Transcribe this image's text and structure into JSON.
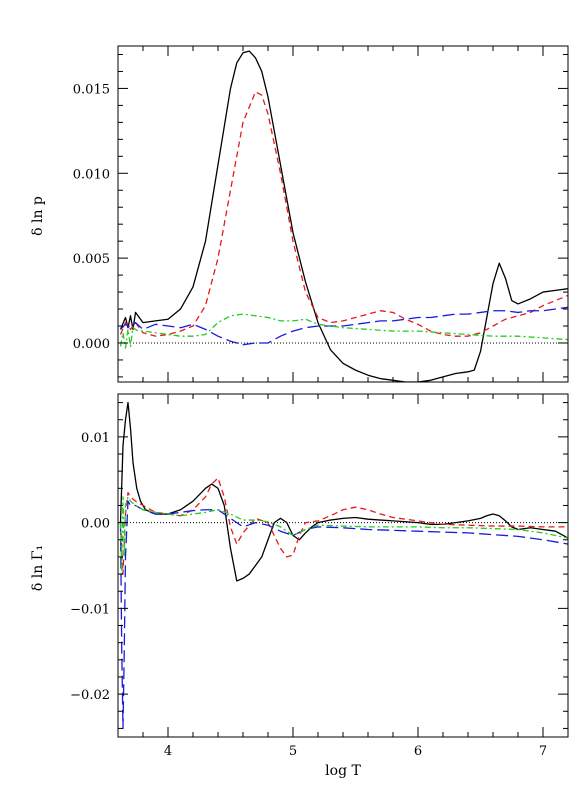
{
  "chart_data": [
    {
      "type": "line",
      "panel": "top",
      "ylabel": "δ ln p",
      "xlabel": "",
      "xlim": [
        3.6,
        7.2
      ],
      "ylim": [
        -0.0023,
        0.0175
      ],
      "xticks": [
        4,
        5,
        6,
        7
      ],
      "yticks": [
        0.0,
        0.005,
        0.01,
        0.015
      ],
      "ytick_labels": [
        "0.000",
        "0.005",
        "0.010",
        "0.015"
      ],
      "show_xtick_labels": false,
      "reference_line_y": 0,
      "series": [
        {
          "color": "#000000",
          "dash": "solid",
          "x": [
            3.62,
            3.66,
            3.68,
            3.7,
            3.72,
            3.74,
            3.8,
            3.9,
            4.0,
            4.1,
            4.2,
            4.3,
            4.4,
            4.5,
            4.55,
            4.6,
            4.65,
            4.7,
            4.75,
            4.8,
            4.9,
            5.0,
            5.1,
            5.2,
            5.3,
            5.4,
            5.5,
            5.6,
            5.7,
            5.8,
            5.9,
            6.0,
            6.1,
            6.2,
            6.3,
            6.4,
            6.45,
            6.5,
            6.55,
            6.6,
            6.65,
            6.7,
            6.75,
            6.8,
            6.9,
            7.0,
            7.1,
            7.2
          ],
          "y": [
            0.0008,
            0.0015,
            0.0009,
            0.0016,
            0.0008,
            0.0018,
            0.0012,
            0.0013,
            0.0014,
            0.002,
            0.0033,
            0.006,
            0.0105,
            0.015,
            0.0165,
            0.0171,
            0.0172,
            0.0168,
            0.016,
            0.0145,
            0.0105,
            0.0065,
            0.0036,
            0.0012,
            -0.0004,
            -0.0012,
            -0.0016,
            -0.0019,
            -0.0021,
            -0.0022,
            -0.0023,
            -0.0023,
            -0.0022,
            -0.002,
            -0.0018,
            -0.0017,
            -0.0016,
            -0.0005,
            0.0015,
            0.0035,
            0.0047,
            0.0038,
            0.0025,
            0.0023,
            0.0026,
            0.003,
            0.0031,
            0.0032
          ]
        },
        {
          "color": "#e41a1c",
          "dash": "6,4",
          "x": [
            3.62,
            3.66,
            3.7,
            3.74,
            3.8,
            3.9,
            4.0,
            4.1,
            4.2,
            4.3,
            4.4,
            4.5,
            4.6,
            4.7,
            4.75,
            4.8,
            4.9,
            5.0,
            5.1,
            5.2,
            5.3,
            5.4,
            5.5,
            5.6,
            5.7,
            5.8,
            5.9,
            6.0,
            6.1,
            6.2,
            6.3,
            6.4,
            6.5,
            6.6,
            6.7,
            6.8,
            6.9,
            7.0,
            7.1,
            7.2
          ],
          "y": [
            0.0005,
            0.0012,
            0.0008,
            0.0012,
            0.0006,
            0.0004,
            0.0005,
            0.0007,
            0.001,
            0.0022,
            0.005,
            0.009,
            0.013,
            0.0148,
            0.0146,
            0.0135,
            0.01,
            0.006,
            0.003,
            0.0015,
            0.0012,
            0.0013,
            0.0015,
            0.0017,
            0.0019,
            0.0018,
            0.0014,
            0.0011,
            0.0007,
            0.0005,
            0.0004,
            0.0004,
            0.0006,
            0.001,
            0.0014,
            0.0016,
            0.0018,
            0.0022,
            0.0025,
            0.0028
          ]
        },
        {
          "color": "#1a1adf",
          "dash": "12,5",
          "x": [
            3.62,
            3.66,
            3.7,
            3.74,
            3.8,
            3.9,
            4.0,
            4.1,
            4.2,
            4.3,
            4.4,
            4.5,
            4.6,
            4.7,
            4.8,
            4.9,
            5.0,
            5.1,
            5.2,
            5.3,
            5.4,
            5.5,
            5.6,
            5.7,
            5.8,
            5.9,
            6.0,
            6.1,
            6.2,
            6.3,
            6.4,
            6.5,
            6.6,
            6.7,
            6.8,
            6.9,
            7.0,
            7.1,
            7.2
          ],
          "y": [
            0.0008,
            0.0011,
            0.0009,
            0.0012,
            0.0008,
            0.0011,
            0.001,
            0.0009,
            0.0011,
            0.0008,
            0.0004,
            0.0001,
            -0.0001,
            0.0,
            0.0,
            0.0004,
            0.0007,
            0.0009,
            0.001,
            0.001,
            0.001,
            0.0011,
            0.0012,
            0.0013,
            0.0013,
            0.0014,
            0.0015,
            0.0015,
            0.0016,
            0.0017,
            0.0017,
            0.0018,
            0.0019,
            0.0019,
            0.0018,
            0.0019,
            0.0019,
            0.002,
            0.0021
          ]
        },
        {
          "color": "#22cc22",
          "dash": "6,3,2,3",
          "x": [
            3.62,
            3.64,
            3.66,
            3.68,
            3.7,
            3.72,
            3.76,
            3.8,
            3.9,
            4.0,
            4.1,
            4.2,
            4.3,
            4.4,
            4.5,
            4.6,
            4.7,
            4.8,
            4.9,
            5.0,
            5.1,
            5.2,
            5.4,
            5.6,
            5.8,
            6.0,
            6.2,
            6.4,
            6.6,
            6.8,
            7.0,
            7.2
          ],
          "y": [
            -0.0002,
            0.0006,
            -0.0003,
            0.0008,
            -0.0002,
            0.0009,
            0.0007,
            0.0007,
            0.0006,
            0.0005,
            0.0004,
            0.0004,
            0.0005,
            0.0012,
            0.0016,
            0.0017,
            0.0016,
            0.0015,
            0.0013,
            0.0013,
            0.0014,
            0.0011,
            0.0009,
            0.0008,
            0.0007,
            0.0007,
            0.0006,
            0.0005,
            0.0004,
            0.0004,
            0.0003,
            0.0002
          ]
        }
      ]
    },
    {
      "type": "line",
      "panel": "bottom",
      "ylabel": "δ ln Γ₁",
      "xlabel": "log T",
      "xlim": [
        3.6,
        7.2
      ],
      "ylim": [
        -0.025,
        0.015
      ],
      "xticks": [
        4,
        5,
        6,
        7
      ],
      "xtick_labels": [
        "4",
        "5",
        "6",
        "7"
      ],
      "yticks": [
        -0.02,
        -0.01,
        0.0,
        0.01
      ],
      "ytick_labels": [
        "−0.02",
        "−0.01",
        "0.00",
        "0.01"
      ],
      "reference_line_y": 0,
      "series": [
        {
          "color": "#000000",
          "dash": "solid",
          "x": [
            3.62,
            3.64,
            3.66,
            3.68,
            3.7,
            3.72,
            3.75,
            3.78,
            3.82,
            3.9,
            4.0,
            4.1,
            4.2,
            4.3,
            4.35,
            4.4,
            4.45,
            4.5,
            4.55,
            4.6,
            4.65,
            4.7,
            4.75,
            4.8,
            4.85,
            4.9,
            4.95,
            5.0,
            5.05,
            5.1,
            5.15,
            5.2,
            5.3,
            5.4,
            5.5,
            5.6,
            5.7,
            5.8,
            5.9,
            6.0,
            6.1,
            6.2,
            6.3,
            6.4,
            6.5,
            6.55,
            6.6,
            6.65,
            6.7,
            6.75,
            6.8,
            6.9,
            7.0,
            7.1,
            7.2
          ],
          "y": [
            0.0,
            0.009,
            0.012,
            0.014,
            0.011,
            0.007,
            0.004,
            0.0025,
            0.0015,
            0.001,
            0.001,
            0.0015,
            0.0025,
            0.004,
            0.0045,
            0.004,
            0.002,
            -0.003,
            -0.0068,
            -0.0065,
            -0.006,
            -0.005,
            -0.004,
            -0.002,
            0.0,
            0.0005,
            0.0,
            -0.0015,
            -0.002,
            -0.0012,
            -0.0005,
            0.0,
            0.0003,
            0.0005,
            0.0006,
            0.0004,
            0.0003,
            0.0002,
            0.0001,
            0.0,
            -0.0002,
            -0.0002,
            0.0,
            0.0002,
            0.0005,
            0.0008,
            0.001,
            0.0008,
            0.0002,
            -0.0005,
            -0.0008,
            -0.0006,
            -0.0008,
            -0.001,
            -0.0018
          ]
        },
        {
          "color": "#e41a1c",
          "dash": "6,4",
          "x": [
            3.62,
            3.64,
            3.66,
            3.68,
            3.7,
            3.74,
            3.8,
            3.9,
            4.0,
            4.1,
            4.2,
            4.3,
            4.35,
            4.4,
            4.45,
            4.5,
            4.55,
            4.6,
            4.7,
            4.8,
            4.9,
            4.95,
            5.0,
            5.05,
            5.1,
            5.2,
            5.3,
            5.4,
            5.5,
            5.6,
            5.7,
            5.8,
            6.0,
            6.2,
            6.4,
            6.6,
            6.8,
            7.0,
            7.2
          ],
          "y": [
            0.0,
            -0.006,
            0.001,
            0.0035,
            0.003,
            0.0025,
            0.002,
            0.0012,
            0.001,
            0.0008,
            0.0015,
            0.003,
            0.0045,
            0.0052,
            0.003,
            -0.0005,
            -0.0025,
            -0.0012,
            0.0005,
            0.0,
            -0.003,
            -0.004,
            -0.0038,
            -0.0015,
            0.0,
            0.0002,
            0.0008,
            0.0015,
            0.0018,
            0.0015,
            0.001,
            0.0006,
            0.0002,
            -0.0002,
            -0.0003,
            -0.0004,
            -0.0004,
            -0.0005,
            -0.0005
          ]
        },
        {
          "color": "#1a1adf",
          "dash": "12,5",
          "x": [
            3.62,
            3.63,
            3.64,
            3.65,
            3.66,
            3.68,
            3.7,
            3.74,
            3.8,
            3.9,
            4.0,
            4.1,
            4.2,
            4.3,
            4.4,
            4.5,
            4.6,
            4.7,
            4.8,
            4.9,
            5.0,
            5.1,
            5.2,
            5.4,
            5.6,
            5.8,
            6.0,
            6.2,
            6.4,
            6.6,
            6.8,
            7.0,
            7.2
          ],
          "y": [
            0.0,
            -0.015,
            -0.024,
            -0.015,
            -0.004,
            0.0025,
            0.002,
            0.002,
            0.0015,
            0.001,
            0.001,
            0.0012,
            0.0014,
            0.0015,
            0.0015,
            0.0005,
            -0.0005,
            0.0,
            -0.0003,
            -0.001,
            -0.0015,
            -0.0008,
            -0.0005,
            -0.0006,
            -0.0008,
            -0.0009,
            -0.001,
            -0.0011,
            -0.0012,
            -0.0014,
            -0.0016,
            -0.002,
            -0.0025
          ]
        },
        {
          "color": "#22cc22",
          "dash": "6,3,2,3",
          "x": [
            3.62,
            3.63,
            3.64,
            3.65,
            3.66,
            3.68,
            3.7,
            3.74,
            3.8,
            3.9,
            4.0,
            4.1,
            4.2,
            4.3,
            4.4,
            4.5,
            4.6,
            4.7,
            4.8,
            4.9,
            5.0,
            5.1,
            5.2,
            5.4,
            5.6,
            5.8,
            6.0,
            6.2,
            6.4,
            6.6,
            6.8,
            7.0,
            7.2
          ],
          "y": [
            0.0,
            -0.006,
            0.003,
            -0.004,
            0.002,
            0.003,
            0.0025,
            0.002,
            0.0015,
            0.0012,
            0.001,
            0.0008,
            0.001,
            0.0012,
            0.0015,
            0.001,
            0.0003,
            0.0003,
            0.0001,
            -0.0005,
            -0.0015,
            -0.0008,
            -0.0003,
            -0.0004,
            -0.0005,
            -0.0005,
            -0.0005,
            -0.0006,
            -0.0006,
            -0.0007,
            -0.0008,
            -0.0012,
            -0.0018
          ]
        }
      ]
    }
  ]
}
